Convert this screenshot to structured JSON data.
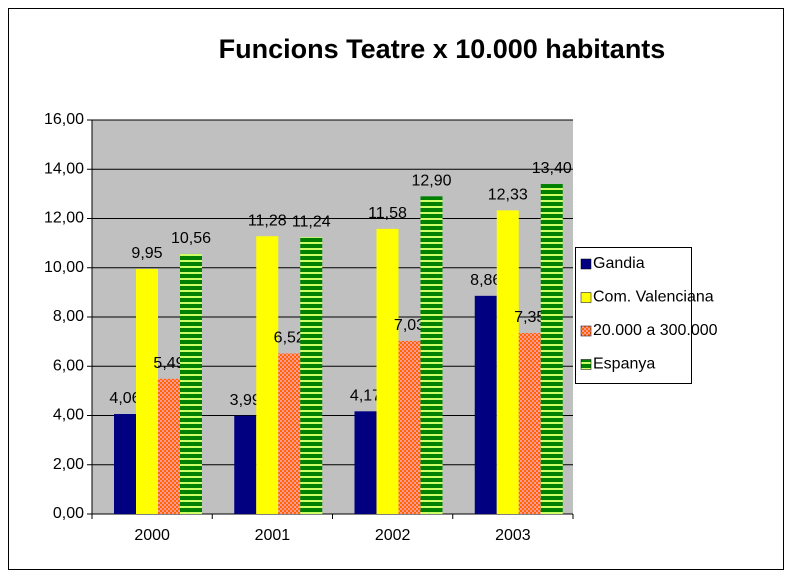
{
  "chart_data": {
    "type": "bar",
    "title": "Funcions Teatre x 10.000 habitants",
    "categories": [
      "2000",
      "2001",
      "2002",
      "2003"
    ],
    "series": [
      {
        "name": "Gandia",
        "color": "#000080",
        "values": [
          4.06,
          3.99,
          4.17,
          8.86
        ],
        "value_labels": [
          "4,06",
          "3,99",
          "4,17",
          "8,86"
        ]
      },
      {
        "name": "Com. Valenciana",
        "color": "#ffff00",
        "values": [
          9.95,
          11.28,
          11.58,
          12.33
        ],
        "value_labels": [
          "9,95",
          "11,28",
          "11,58",
          "12,33"
        ]
      },
      {
        "name": "20.000 a 300.000",
        "color": "#ff6600",
        "values": [
          5.49,
          6.52,
          7.03,
          7.35
        ],
        "value_labels": [
          "5,49",
          "6,52",
          "7,03",
          "7,35"
        ]
      },
      {
        "name": "Espanya",
        "color": "#008000",
        "values": [
          10.56,
          11.24,
          12.9,
          13.4
        ],
        "value_labels": [
          "10,56",
          "11,24",
          "12,90",
          "13,40"
        ]
      }
    ],
    "ylim": [
      0,
      16
    ],
    "yticks": [
      {
        "value": 0,
        "label": "0,00"
      },
      {
        "value": 2,
        "label": "2,00"
      },
      {
        "value": 4,
        "label": "4,00"
      },
      {
        "value": 6,
        "label": "6,00"
      },
      {
        "value": 8,
        "label": "8,00"
      },
      {
        "value": 10,
        "label": "10,00"
      },
      {
        "value": 12,
        "label": "12,00"
      },
      {
        "value": 14,
        "label": "14,00"
      },
      {
        "value": 16,
        "label": "16,00"
      }
    ],
    "grid": true,
    "legend": "right"
  }
}
